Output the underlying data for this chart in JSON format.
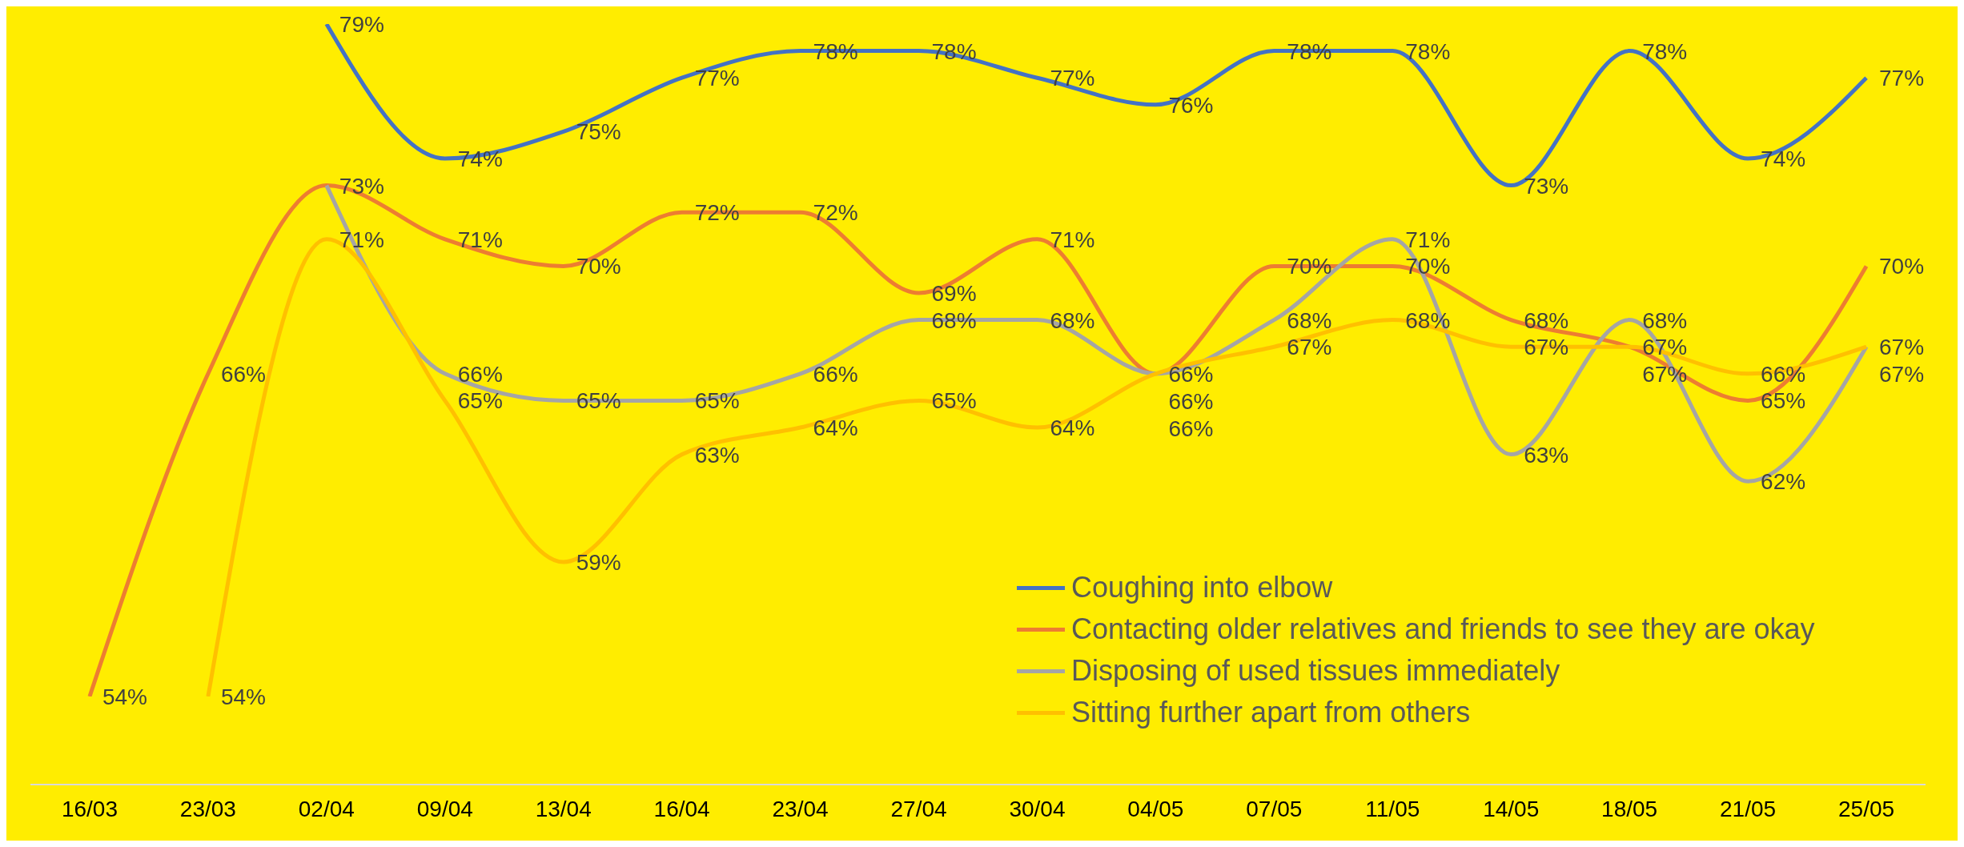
{
  "chart_data": {
    "type": "line",
    "categories": [
      "16/03",
      "23/03",
      "02/04",
      "09/04",
      "13/04",
      "16/04",
      "23/04",
      "27/04",
      "30/04",
      "04/05",
      "07/05",
      "11/05",
      "14/05",
      "18/05",
      "21/05",
      "25/05"
    ],
    "tick_labels": "x",
    "legend": "bottom right",
    "grid": false,
    "marker": "none",
    "series": [
      {
        "name": "Coughing into elbow",
        "color": "#4472c4",
        "values": [
          null,
          null,
          79,
          74,
          75,
          77,
          78,
          78,
          77,
          76,
          78,
          78,
          73,
          78,
          74,
          77
        ],
        "value_labels": [
          null,
          null,
          "79%",
          "74%",
          "75%",
          "77%",
          "78%",
          "78%",
          "77%",
          "76%",
          "78%",
          "78%",
          "73%",
          "78%",
          "74%",
          "77%"
        ]
      },
      {
        "name": "Contacting older relatives and friends to see they are okay",
        "color": "#ed7d31",
        "values": [
          54,
          66,
          73,
          71,
          70,
          72,
          72,
          69,
          71,
          66,
          70,
          70,
          68,
          67,
          65,
          70
        ],
        "value_labels": [
          "54%",
          "66%",
          "73%",
          "71%",
          "70%",
          "72%",
          "72%",
          "69%",
          "71%",
          "66%",
          "70%",
          "70%",
          "68%",
          "67%",
          "65%",
          "70%"
        ]
      },
      {
        "name": "Disposing of used tissues immediately",
        "color": "#a5a5a5",
        "values": [
          null,
          null,
          73,
          66,
          65,
          65,
          66,
          68,
          68,
          66,
          68,
          71,
          63,
          68,
          62,
          67
        ],
        "value_labels": [
          null,
          null,
          null,
          "66%",
          "65%",
          "65%",
          "66%",
          "68%",
          "68%",
          "66%",
          "68%",
          "71%",
          "63%",
          "68%",
          "62%",
          "67%"
        ]
      },
      {
        "name": "Sitting further apart from others",
        "color": "#ffc000",
        "values": [
          null,
          54,
          71,
          65,
          59,
          63,
          64,
          65,
          64,
          66,
          67,
          68,
          67,
          67,
          66,
          67
        ],
        "value_labels": [
          null,
          "54%",
          "71%",
          "65%",
          "59%",
          "63%",
          "64%",
          "65%",
          "64%",
          "66%",
          "67%",
          "68%",
          "67%",
          "67%",
          "66%",
          "67%"
        ]
      }
    ]
  }
}
